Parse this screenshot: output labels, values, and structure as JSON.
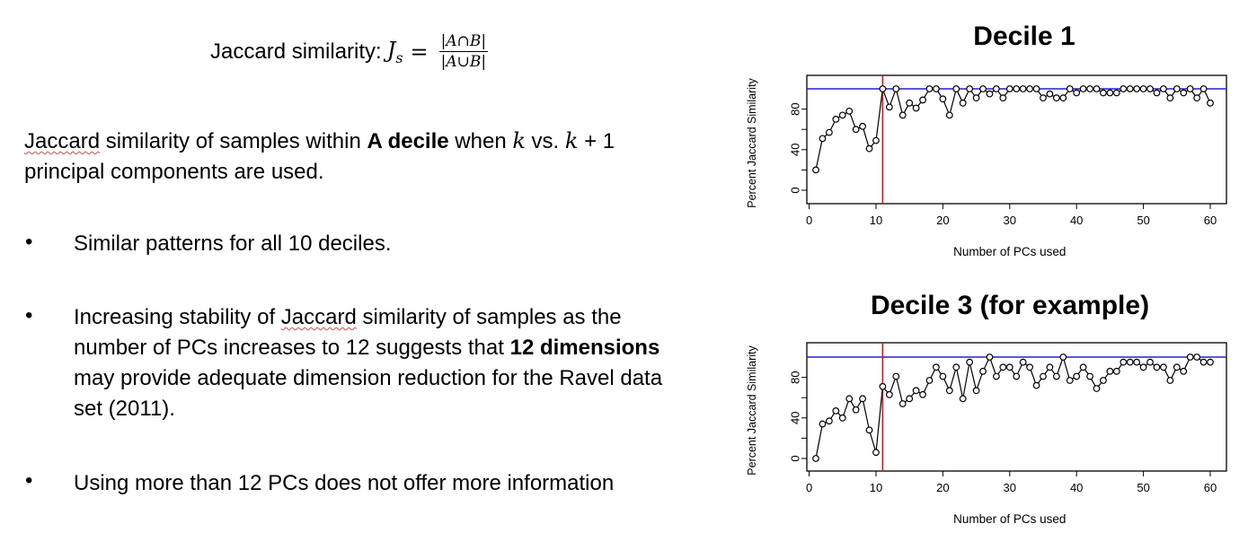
{
  "slide": {
    "formula_label": "Jaccard similarity:",
    "formula_J": "J",
    "formula_sub": "s",
    "formula_eq": "=",
    "formula_num": "|A∩B|",
    "formula_den": "|A∪B|",
    "intro_1": "Jaccard",
    "intro_2": " similarity of samples within ",
    "intro_bold": "A decile",
    "intro_3": " when ",
    "intro_k1": "k",
    "intro_4": " vs. ",
    "intro_k2": "k",
    "intro_5": " + 1 principal components are used.",
    "bullet_char": "•",
    "bullet1": "Similar patterns for all 10 deciles.",
    "bullet2_a": "Increasing stability of ",
    "bullet2_b": "Jaccard",
    "bullet2_c": " similarity of samples as the number of PCs increases to 12 suggests that ",
    "bullet2_bold1": "12 dimensions",
    "bullet2_d": " may provide adequate dimension reduction for the Ravel data set (2011).",
    "bullet3": "Using more than 12 PCs does not offer more information"
  },
  "colors": {
    "hline": "#2222cc",
    "vline": "#dd1111",
    "series": "#000000"
  },
  "chart_data": [
    {
      "type": "line",
      "title": "Decile 1",
      "xlabel": "Number of PCs used",
      "ylabel": "Percent Jaccard Similarity",
      "xlim": [
        1,
        60
      ],
      "ylim": [
        0,
        100
      ],
      "xticks": [
        0,
        10,
        20,
        30,
        40,
        50,
        60
      ],
      "yticks": [
        0,
        40,
        80
      ],
      "hline": 100,
      "vline": 11,
      "x": [
        1,
        2,
        3,
        4,
        5,
        6,
        7,
        8,
        9,
        10,
        11,
        12,
        13,
        14,
        15,
        16,
        17,
        18,
        19,
        20,
        21,
        22,
        23,
        24,
        25,
        26,
        27,
        28,
        29,
        30,
        31,
        32,
        33,
        34,
        35,
        36,
        37,
        38,
        39,
        40,
        41,
        42,
        43,
        44,
        45,
        46,
        47,
        48,
        49,
        50,
        51,
        52,
        53,
        54,
        55,
        56,
        57,
        58,
        59,
        60
      ],
      "y": [
        20,
        51,
        57,
        70,
        74,
        78,
        60,
        63,
        41,
        49,
        100,
        82,
        100,
        74,
        86,
        81,
        89,
        100,
        100,
        90,
        74,
        100,
        86,
        100,
        91,
        100,
        95,
        100,
        91,
        100,
        100,
        100,
        100,
        100,
        91,
        95,
        91,
        91,
        100,
        96,
        100,
        100,
        100,
        96,
        96,
        96,
        100,
        100,
        100,
        100,
        100,
        96,
        100,
        91,
        100,
        96,
        100,
        91,
        100,
        86
      ]
    },
    {
      "type": "line",
      "title": "Decile 3 (for example)",
      "xlabel": "Number of PCs used",
      "ylabel": "Percent Jaccard Similarity",
      "xlim": [
        1,
        60
      ],
      "ylim": [
        0,
        100
      ],
      "xticks": [
        0,
        10,
        20,
        30,
        40,
        50,
        60
      ],
      "yticks": [
        0,
        40,
        80
      ],
      "hline": 100,
      "vline": 11,
      "x": [
        1,
        2,
        3,
        4,
        5,
        6,
        7,
        8,
        9,
        10,
        11,
        12,
        13,
        14,
        15,
        16,
        17,
        18,
        19,
        20,
        21,
        22,
        23,
        24,
        25,
        26,
        27,
        28,
        29,
        30,
        31,
        32,
        33,
        34,
        35,
        36,
        37,
        38,
        39,
        40,
        41,
        42,
        43,
        44,
        45,
        46,
        47,
        48,
        49,
        50,
        51,
        52,
        53,
        54,
        55,
        56,
        57,
        58,
        59,
        60
      ],
      "y": [
        0,
        34,
        37,
        47,
        40,
        59,
        48,
        59,
        28,
        6,
        71,
        63,
        81,
        54,
        59,
        67,
        63,
        77,
        90,
        81,
        67,
        90,
        59,
        95,
        67,
        86,
        100,
        81,
        90,
        90,
        81,
        95,
        90,
        72,
        81,
        90,
        81,
        100,
        77,
        81,
        90,
        81,
        69,
        77,
        86,
        86,
        95,
        95,
        95,
        90,
        95,
        90,
        90,
        77,
        90,
        86,
        100,
        100,
        95,
        95
      ]
    }
  ]
}
